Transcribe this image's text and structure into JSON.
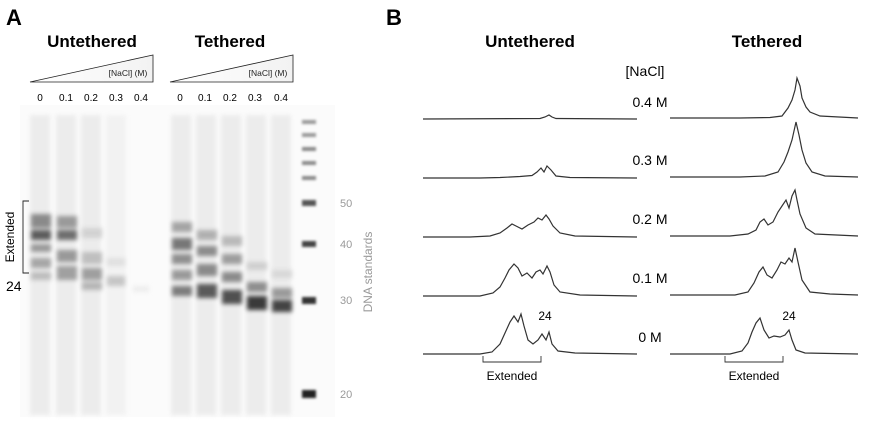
{
  "panel_a": {
    "letter": "A",
    "untethered_title": "Untethered",
    "tethered_title": "Tethered",
    "triangle_label": "[NaCl] (M)",
    "lane_labels": [
      "0",
      "0.1",
      "0.2",
      "0.3",
      "0.4"
    ],
    "extended_label": "Extended",
    "marker_24": "24",
    "standard_labels": [
      "50",
      "40",
      "30",
      "20"
    ],
    "standards_title": "DNA standards"
  },
  "panel_b": {
    "letter": "B",
    "untethered_title": "Untethered",
    "tethered_title": "Tethered",
    "nacl_header": "[NaCl]",
    "conc_labels": [
      "0.4 M",
      "0.3 M",
      "0.2 M",
      "0.1 M",
      "0 M"
    ],
    "peak_label_left": "24",
    "peak_label_right": "24",
    "extended_left": "Extended",
    "extended_right": "Extended"
  }
}
